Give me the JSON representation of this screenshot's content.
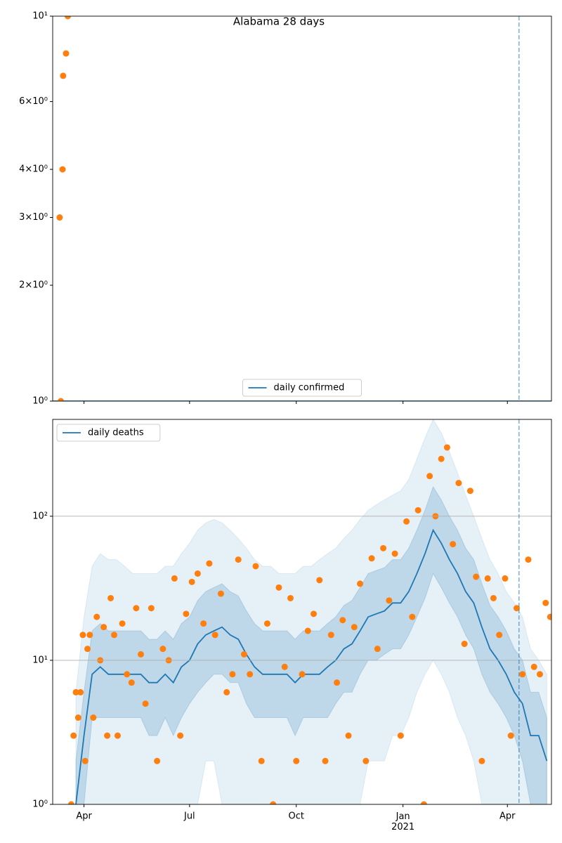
{
  "chart_data": [
    {
      "type": "line",
      "title": "Alabama 28 days",
      "log": "y",
      "legend": "lower center",
      "sharex": true,
      "xlim": [
        0,
        430
      ],
      "ylim": [
        1,
        10
      ],
      "vline": 402,
      "yticks": [
        {
          "value": 1,
          "label": "10⁰"
        },
        {
          "value": 2,
          "label": "2×10⁰"
        },
        {
          "value": 3,
          "label": "3×10⁰"
        },
        {
          "value": 4,
          "label": "4×10⁰"
        },
        {
          "value": 6,
          "label": "6×10⁰"
        },
        {
          "value": 10,
          "label": "10¹"
        }
      ],
      "x": [
        0,
        430
      ],
      "series": [
        {
          "name": "daily confirmed",
          "color": "#1f77b4",
          "values": [
            1,
            1
          ]
        }
      ],
      "points": {
        "color": "#ff7f0e",
        "x": [
          6,
          7,
          8.5,
          9,
          11.5,
          13
        ],
        "values": [
          3,
          1,
          4,
          7,
          8,
          10
        ]
      }
    },
    {
      "type": "line",
      "log": "y",
      "legend": "upper left",
      "grid": true,
      "xlim": [
        0,
        430
      ],
      "ylim": [
        1,
        470
      ],
      "vline": 402,
      "xticks": [
        {
          "value": 27,
          "label": "Apr"
        },
        {
          "value": 118,
          "label": "Jul"
        },
        {
          "value": 210,
          "label": "Oct"
        },
        {
          "value": 302,
          "label": "Jan\n2021"
        },
        {
          "value": 392,
          "label": "Apr"
        }
      ],
      "yticks": [
        {
          "value": 1,
          "label": "10⁰"
        },
        {
          "value": 10,
          "label": "10¹"
        },
        {
          "value": 100,
          "label": "10²"
        }
      ],
      "x": [
        20,
        27,
        34,
        41,
        48,
        55,
        62,
        69,
        76,
        83,
        90,
        97,
        104,
        111,
        118,
        125,
        132,
        139,
        146,
        153,
        160,
        167,
        174,
        181,
        188,
        195,
        202,
        209,
        216,
        223,
        230,
        237,
        244,
        251,
        258,
        265,
        272,
        279,
        286,
        293,
        300,
        307,
        314,
        321,
        328,
        335,
        342,
        349,
        356,
        363,
        370,
        377,
        384,
        391,
        398,
        405,
        412,
        419,
        426
      ],
      "bands": [
        {
          "color": "rgba(31,119,180,0.11)",
          "upper": [
            6,
            20,
            45,
            55,
            50,
            50,
            45,
            40,
            40,
            40,
            40,
            45,
            45,
            55,
            65,
            80,
            90,
            95,
            90,
            80,
            70,
            60,
            50,
            45,
            45,
            40,
            40,
            40,
            45,
            45,
            50,
            55,
            60,
            70,
            80,
            95,
            110,
            120,
            130,
            140,
            150,
            180,
            250,
            350,
            470,
            380,
            280,
            200,
            140,
            100,
            70,
            50,
            40,
            30,
            25,
            20,
            12,
            10,
            8
          ],
          "lower": [
            1,
            1,
            1,
            1,
            1,
            1,
            1,
            1,
            1,
            1,
            1,
            1,
            1,
            1,
            1,
            1,
            2,
            2,
            1,
            1,
            1,
            1,
            1,
            1,
            1,
            1,
            1,
            1,
            1,
            1,
            1,
            1,
            1,
            1,
            1,
            1,
            2,
            2,
            2,
            3,
            3,
            4,
            6,
            8,
            10,
            8,
            6,
            4,
            3,
            2,
            1,
            1,
            1,
            1,
            1,
            1,
            1,
            1,
            1
          ]
        },
        {
          "color": "rgba(31,119,180,0.2)",
          "upper": [
            2,
            6,
            16,
            18,
            16,
            16,
            16,
            16,
            16,
            14,
            14,
            16,
            14,
            18,
            20,
            26,
            30,
            32,
            34,
            30,
            28,
            22,
            18,
            16,
            16,
            16,
            16,
            14,
            16,
            16,
            16,
            18,
            20,
            24,
            26,
            32,
            40,
            42,
            44,
            50,
            50,
            60,
            80,
            110,
            160,
            130,
            100,
            80,
            60,
            50,
            34,
            24,
            20,
            16,
            12,
            10,
            6,
            6,
            4
          ],
          "lower": [
            1,
            1,
            4,
            4,
            4,
            4,
            4,
            4,
            4,
            3,
            3,
            4,
            3,
            4,
            5,
            6,
            7,
            8,
            8,
            7,
            7,
            5,
            4,
            4,
            4,
            4,
            4,
            3,
            4,
            4,
            4,
            4,
            5,
            6,
            6,
            8,
            10,
            10,
            11,
            12,
            12,
            15,
            20,
            27,
            40,
            32,
            25,
            20,
            15,
            12,
            8,
            6,
            5,
            4,
            3,
            2,
            1,
            1,
            1
          ]
        }
      ],
      "series": [
        {
          "name": "daily deaths",
          "color": "#1f77b4",
          "values": [
            1,
            3,
            8,
            9,
            8,
            8,
            8,
            8,
            8,
            7,
            7,
            8,
            7,
            9,
            10,
            13,
            15,
            16,
            17,
            15,
            14,
            11,
            9,
            8,
            8,
            8,
            8,
            7,
            8,
            8,
            8,
            9,
            10,
            12,
            13,
            16,
            20,
            21,
            22,
            25,
            25,
            30,
            40,
            55,
            80,
            65,
            50,
            40,
            30,
            25,
            17,
            12,
            10,
            8,
            6,
            5,
            3,
            3,
            2
          ]
        }
      ],
      "points": {
        "color": "#ff7f0e",
        "x": [
          16,
          18,
          20,
          22,
          24,
          26,
          28,
          30,
          32,
          35,
          38,
          41,
          44,
          47,
          50,
          53,
          56,
          60,
          64,
          68,
          72,
          76,
          80,
          85,
          90,
          95,
          100,
          105,
          110,
          115,
          120,
          125,
          130,
          135,
          140,
          145,
          150,
          155,
          160,
          165,
          170,
          175,
          180,
          185,
          190,
          195,
          200,
          205,
          210,
          215,
          220,
          225,
          230,
          235,
          240,
          245,
          250,
          255,
          260,
          265,
          270,
          275,
          280,
          285,
          290,
          295,
          300,
          305,
          310,
          315,
          320,
          325,
          330,
          335,
          340,
          345,
          350,
          355,
          360,
          365,
          370,
          375,
          380,
          385,
          390,
          395,
          400,
          405,
          410,
          415,
          420,
          425,
          429
        ],
        "values": [
          1,
          3,
          6,
          4,
          6,
          15,
          2,
          12,
          15,
          4,
          20,
          10,
          17,
          3,
          27,
          15,
          3,
          18,
          8,
          7,
          23,
          11,
          5,
          23,
          2,
          12,
          10,
          37,
          3,
          21,
          35,
          40,
          18,
          47,
          15,
          29,
          6,
          8,
          50,
          11,
          8,
          45,
          2,
          18,
          1,
          32,
          9,
          27,
          2,
          8,
          16,
          21,
          36,
          2,
          15,
          7,
          19,
          3,
          17,
          34,
          2,
          51,
          12,
          60,
          26,
          55,
          3,
          92,
          20,
          110,
          1,
          190,
          100,
          250,
          300,
          64,
          170,
          13,
          150,
          38,
          2,
          37,
          27,
          15,
          37,
          3,
          23,
          8,
          50,
          9,
          8,
          25,
          20
        ]
      }
    }
  ]
}
